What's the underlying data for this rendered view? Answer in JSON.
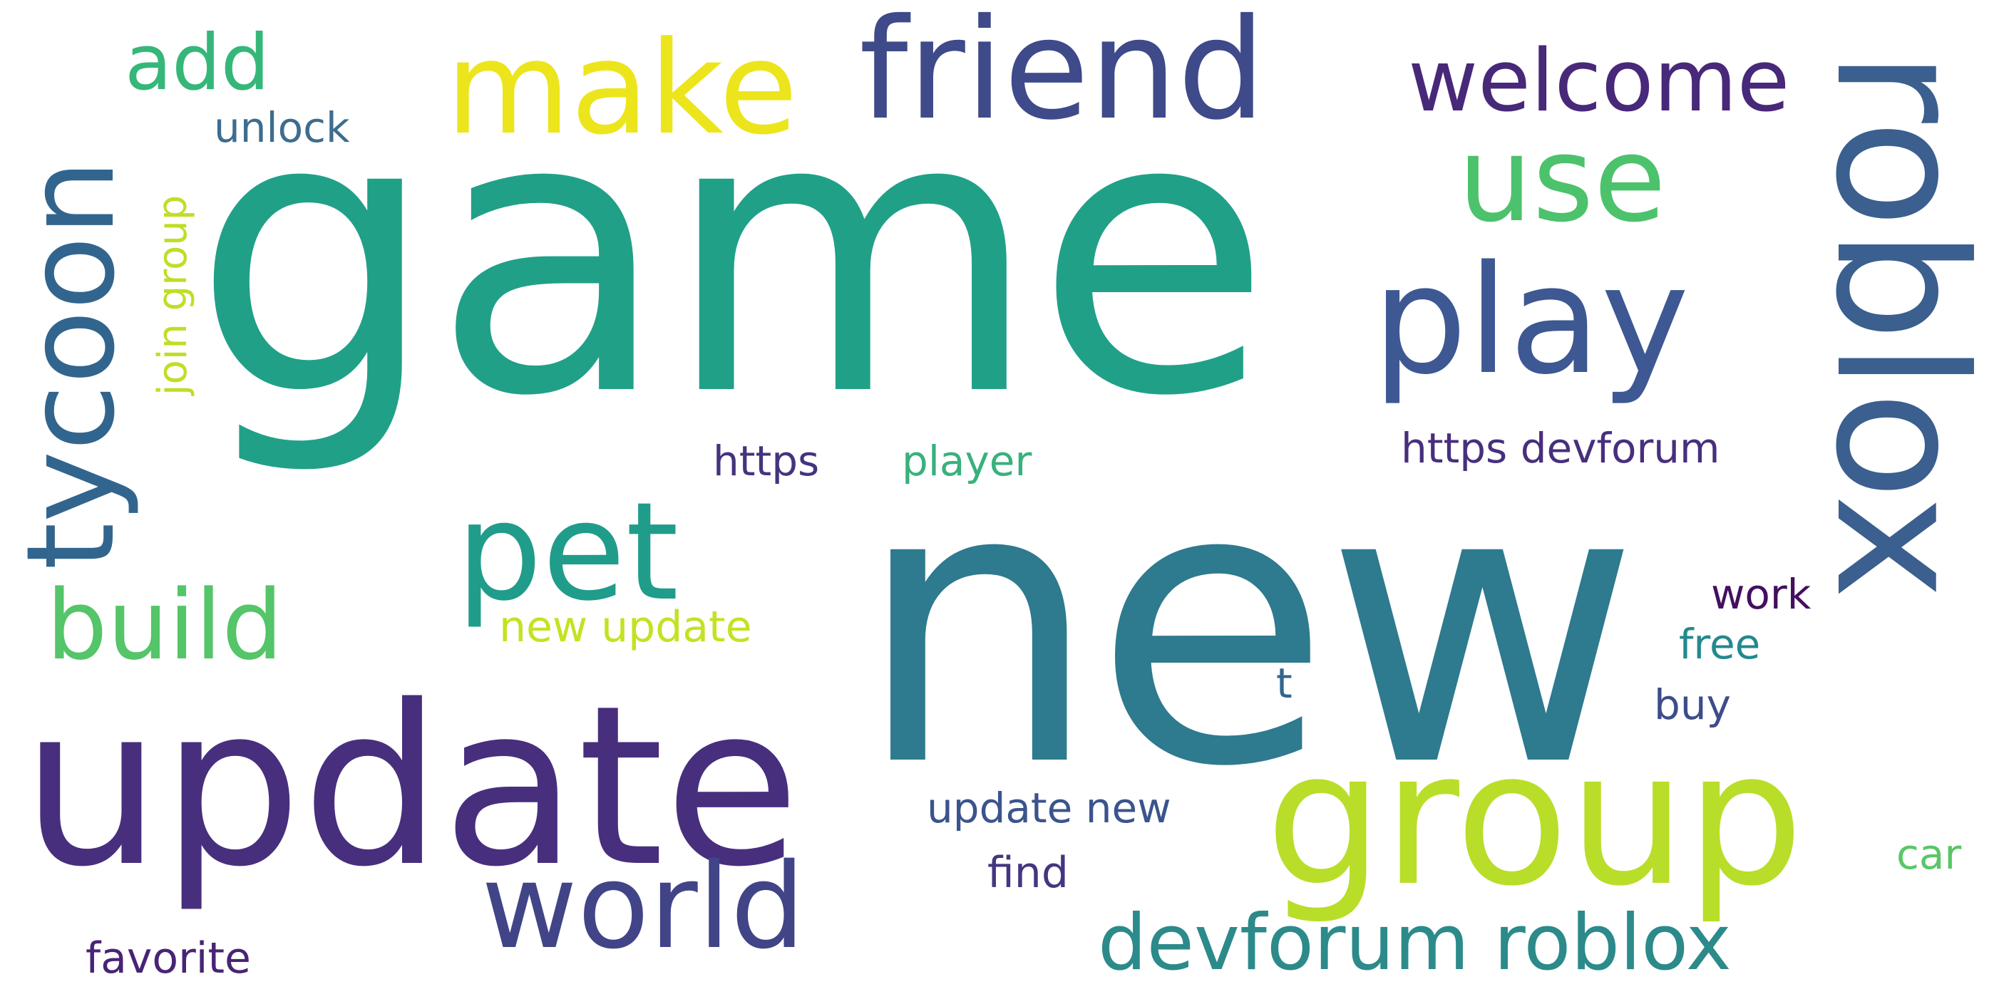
{
  "words": [
    {
      "text": "game",
      "color": "#21a088"
    },
    {
      "text": "new",
      "color": "#2e7a8e"
    },
    {
      "text": "update",
      "color": "#472f7d"
    },
    {
      "text": "roblox",
      "color": "#3b5f8e"
    },
    {
      "text": "group",
      "color": "#b8de29"
    },
    {
      "text": "friend",
      "color": "#3e4a89"
    },
    {
      "text": "make",
      "color": "#ece51b"
    },
    {
      "text": "play",
      "color": "#3d5892"
    },
    {
      "text": "tycoon",
      "color": "#32658e"
    },
    {
      "text": "pet",
      "color": "#209c8b"
    },
    {
      "text": "world",
      "color": "#414487"
    },
    {
      "text": "use",
      "color": "#4cc26c"
    },
    {
      "text": "welcome",
      "color": "#482878"
    },
    {
      "text": "build",
      "color": "#54c568"
    },
    {
      "text": "devforum roblox",
      "color": "#2c8a8a"
    },
    {
      "text": "add",
      "color": "#35b779"
    },
    {
      "text": "https devforum",
      "color": "#472f7d"
    },
    {
      "text": "https",
      "color": "#46337e"
    },
    {
      "text": "player",
      "color": "#39b17c"
    },
    {
      "text": "new update",
      "color": "#c3e221"
    },
    {
      "text": "update new",
      "color": "#3a548c"
    },
    {
      "text": "unlock",
      "color": "#3d6d8e"
    },
    {
      "text": "join group",
      "color": "#bddf26"
    },
    {
      "text": "favorite",
      "color": "#482475"
    },
    {
      "text": "find",
      "color": "#453581"
    },
    {
      "text": "work",
      "color": "#440f5f"
    },
    {
      "text": "free",
      "color": "#23898e"
    },
    {
      "text": "buy",
      "color": "#3e4c8a"
    },
    {
      "text": "car",
      "color": "#58c765"
    },
    {
      "text": "t",
      "color": "#31668e"
    }
  ]
}
